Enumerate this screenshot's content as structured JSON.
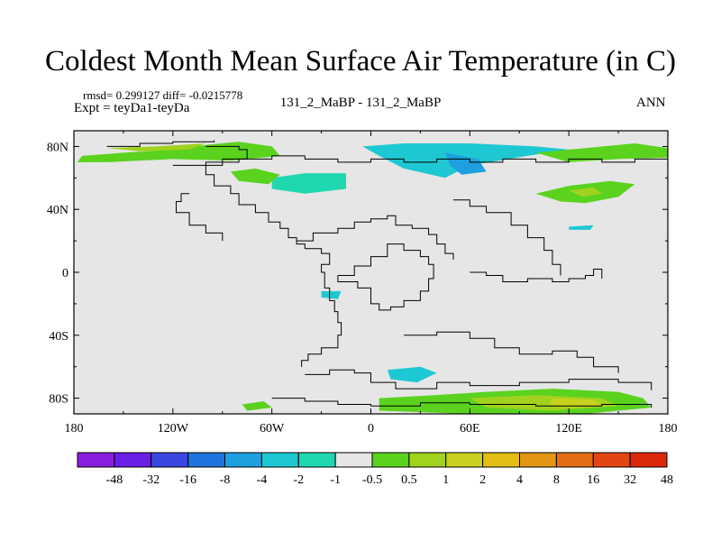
{
  "header": {
    "title": "Coldest Month Mean Surface Air Temperature (in C)",
    "stats": "rmsd= 0.299127  diff= -0.0215778",
    "expt": "Expt = teyDa1-teyDa",
    "center": "131_2_MaBP - 131_2_MaBP",
    "season": "ANN"
  },
  "colors": {
    "land_gray": "#e6e6e6",
    "coast": "#000000"
  },
  "chart_data": {
    "type": "heatmap",
    "title": "Coldest Month Mean Surface Air Temperature (in C)",
    "xlabel": "",
    "ylabel": "",
    "xlim": [
      -180,
      180
    ],
    "ylim": [
      -90,
      90
    ],
    "x_ticks": [
      {
        "value": -180,
        "label": "180"
      },
      {
        "value": -120,
        "label": "120W"
      },
      {
        "value": -60,
        "label": "60W"
      },
      {
        "value": 0,
        "label": "0"
      },
      {
        "value": 60,
        "label": "60E"
      },
      {
        "value": 120,
        "label": "120E"
      },
      {
        "value": 180,
        "label": "180"
      }
    ],
    "y_ticks": [
      {
        "value": 80,
        "label": "80N"
      },
      {
        "value": 40,
        "label": "40N"
      },
      {
        "value": 0,
        "label": "0"
      },
      {
        "value": -40,
        "label": "40S"
      },
      {
        "value": -80,
        "label": "80S"
      }
    ],
    "colorbar": {
      "colors": [
        "#8a1ee0",
        "#6a1ee6",
        "#3a48e0",
        "#2072dc",
        "#1ea0e0",
        "#1ec8d2",
        "#20d8b0",
        "#e6e6e6",
        "#5ad21e",
        "#a0d21e",
        "#c8d21e",
        "#e1be14",
        "#e19614",
        "#e16e14",
        "#e14614",
        "#dc280a"
      ],
      "labels": [
        "-48",
        "-32",
        "-16",
        "-8",
        "-4",
        "-2",
        "-1",
        "-0.5",
        "0.5",
        "1",
        "2",
        "4",
        "8",
        "16",
        "32",
        "48"
      ]
    },
    "regions": [
      {
        "name": "arctic-west",
        "color": "#5ad21e",
        "pts": [
          [
            -175,
            74
          ],
          [
            -150,
            76
          ],
          [
            -120,
            78
          ],
          [
            -100,
            81
          ],
          [
            -80,
            83
          ],
          [
            -60,
            80
          ],
          [
            -55,
            74
          ],
          [
            -85,
            71
          ],
          [
            -120,
            72
          ],
          [
            -160,
            70
          ],
          [
            -178,
            70
          ]
        ]
      },
      {
        "name": "arctic-west-warm",
        "color": "#a0d21e",
        "pts": [
          [
            -160,
            79
          ],
          [
            -130,
            80
          ],
          [
            -100,
            82
          ],
          [
            -110,
            78
          ],
          [
            -140,
            77
          ]
        ]
      },
      {
        "name": "arctic-center",
        "color": "#1ec8d2",
        "pts": [
          [
            -5,
            80
          ],
          [
            20,
            82
          ],
          [
            60,
            82
          ],
          [
            100,
            80
          ],
          [
            120,
            78
          ],
          [
            95,
            74
          ],
          [
            60,
            68
          ],
          [
            45,
            60
          ],
          [
            20,
            66
          ],
          [
            5,
            74
          ]
        ]
      },
      {
        "name": "arctic-center-deep",
        "color": "#1ea0e0",
        "pts": [
          [
            45,
            76
          ],
          [
            65,
            72
          ],
          [
            70,
            64
          ],
          [
            55,
            62
          ],
          [
            48,
            68
          ]
        ]
      },
      {
        "name": "arctic-east",
        "color": "#5ad21e",
        "pts": [
          [
            100,
            76
          ],
          [
            130,
            79
          ],
          [
            160,
            82
          ],
          [
            180,
            79
          ],
          [
            180,
            73
          ],
          [
            150,
            72
          ],
          [
            120,
            70
          ]
        ]
      },
      {
        "name": "alaska-cyan",
        "color": "#20d8b0",
        "pts": [
          [
            -40,
            63
          ],
          [
            -15,
            63
          ],
          [
            -15,
            53
          ],
          [
            -40,
            50
          ],
          [
            -60,
            53
          ],
          [
            -60,
            60
          ]
        ]
      },
      {
        "name": "n-atlantic-green",
        "color": "#5ad21e",
        "pts": [
          [
            -85,
            64
          ],
          [
            -70,
            66
          ],
          [
            -55,
            62
          ],
          [
            -62,
            56
          ],
          [
            -80,
            58
          ]
        ]
      },
      {
        "name": "east-asia",
        "color": "#5ad21e",
        "pts": [
          [
            100,
            50
          ],
          [
            120,
            55
          ],
          [
            145,
            58
          ],
          [
            160,
            56
          ],
          [
            150,
            48
          ],
          [
            130,
            44
          ],
          [
            115,
            45
          ]
        ]
      },
      {
        "name": "east-asia-warm",
        "color": "#a0d21e",
        "pts": [
          [
            120,
            52
          ],
          [
            135,
            54
          ],
          [
            140,
            50
          ],
          [
            128,
            48
          ]
        ]
      },
      {
        "name": "kamchatka-cyan",
        "color": "#1ec8d2",
        "pts": [
          [
            120,
            29
          ],
          [
            135,
            30
          ],
          [
            133,
            27
          ],
          [
            120,
            27
          ]
        ]
      },
      {
        "name": "tropic-cyan",
        "color": "#1ec8d2",
        "pts": [
          [
            -30,
            -12
          ],
          [
            -18,
            -12
          ],
          [
            -20,
            -17
          ],
          [
            -30,
            -16
          ]
        ]
      },
      {
        "name": "south-cyan",
        "color": "#1ec8d2",
        "pts": [
          [
            10,
            -62
          ],
          [
            30,
            -60
          ],
          [
            40,
            -64
          ],
          [
            28,
            -70
          ],
          [
            12,
            -68
          ]
        ]
      },
      {
        "name": "antarctic-green",
        "color": "#5ad21e",
        "pts": [
          [
            5,
            -80
          ],
          [
            40,
            -78
          ],
          [
            70,
            -76
          ],
          [
            110,
            -74
          ],
          [
            150,
            -76
          ],
          [
            165,
            -80
          ],
          [
            170,
            -86
          ],
          [
            130,
            -90
          ],
          [
            60,
            -90
          ],
          [
            5,
            -88
          ]
        ]
      },
      {
        "name": "antarctic-warm",
        "color": "#a0d21e",
        "pts": [
          [
            60,
            -80
          ],
          [
            100,
            -78
          ],
          [
            140,
            -80
          ],
          [
            150,
            -85
          ],
          [
            110,
            -88
          ],
          [
            70,
            -86
          ]
        ]
      },
      {
        "name": "antarctic-warmer",
        "color": "#c8d21e",
        "pts": [
          [
            110,
            -80
          ],
          [
            135,
            -81
          ],
          [
            140,
            -85
          ],
          [
            120,
            -86
          ],
          [
            108,
            -84
          ]
        ]
      },
      {
        "name": "antarctic-west-green",
        "color": "#5ad21e",
        "pts": [
          [
            -78,
            -84
          ],
          [
            -65,
            -82
          ],
          [
            -60,
            -86
          ],
          [
            -75,
            -88
          ]
        ]
      }
    ]
  }
}
